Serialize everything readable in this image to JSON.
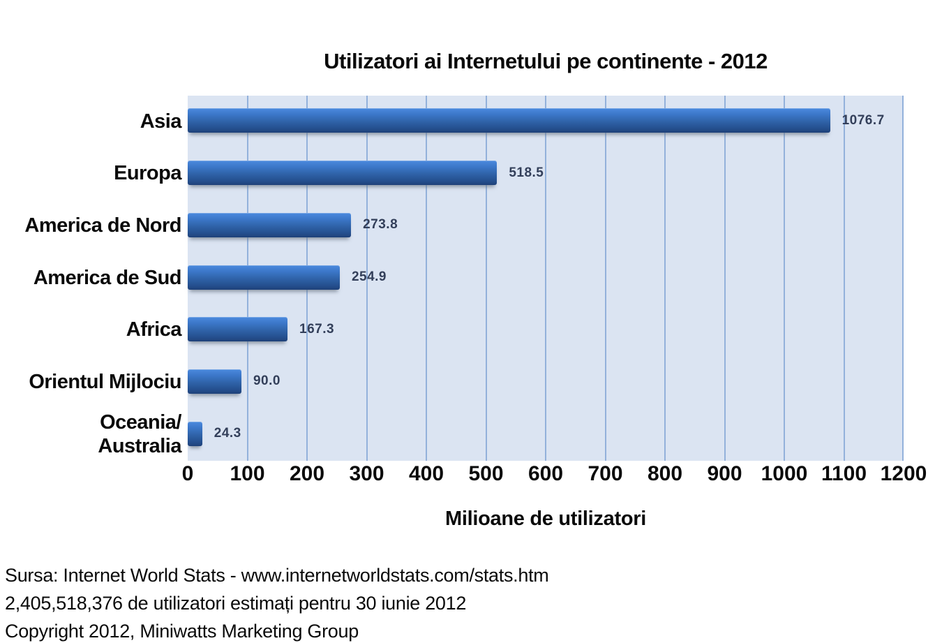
{
  "title": "Utilizatori ai Internetului pe continente - 2012",
  "chart_data": {
    "type": "bar",
    "orientation": "horizontal",
    "title": "Utilizatori ai Internetului pe continente - 2012",
    "categories": [
      "Asia",
      "Europa",
      "America de Nord",
      "America de Sud",
      "Africa",
      "Orientul Mijlociu",
      "Oceania/Australia"
    ],
    "category_display": [
      [
        "Asia"
      ],
      [
        "Europa"
      ],
      [
        "America de Nord"
      ],
      [
        "America de Sud"
      ],
      [
        "Africa"
      ],
      [
        "Orientul Mijlociu"
      ],
      [
        "Oceania/",
        "Australia"
      ]
    ],
    "values": [
      1076.7,
      518.5,
      273.8,
      254.9,
      167.3,
      90.0,
      24.3
    ],
    "value_labels": [
      "1076.7",
      "518.5",
      "273.8",
      "254.9",
      "167.3",
      "90.0",
      "24.3"
    ],
    "xlabel": "Milioane de utilizatori",
    "ylabel": "",
    "xlim": [
      0,
      1200
    ],
    "xticks": [
      0,
      100,
      200,
      300,
      400,
      500,
      600,
      700,
      800,
      900,
      1000,
      1100,
      1200
    ],
    "grid": true,
    "legend": false
  },
  "footer": {
    "lines": [
      "Sursa: Internet World Stats - www.internetworldstats.com/stats.htm",
      "2,405,518,376 de utilizatori estimați pentru 30 iunie 2012",
      "Copyright 2012, Miniwatts Marketing Group"
    ]
  },
  "colors": {
    "plot_bg": "#dbe4f2",
    "gridline": "#93b1db",
    "bar_gradient_top": "#4b8ade",
    "bar_gradient_mid": "#2f62a8",
    "bar_gradient_bottom": "#1e4078",
    "value_label": "#333f5a",
    "text": "#0a0a0a",
    "background": "#ffffff"
  }
}
